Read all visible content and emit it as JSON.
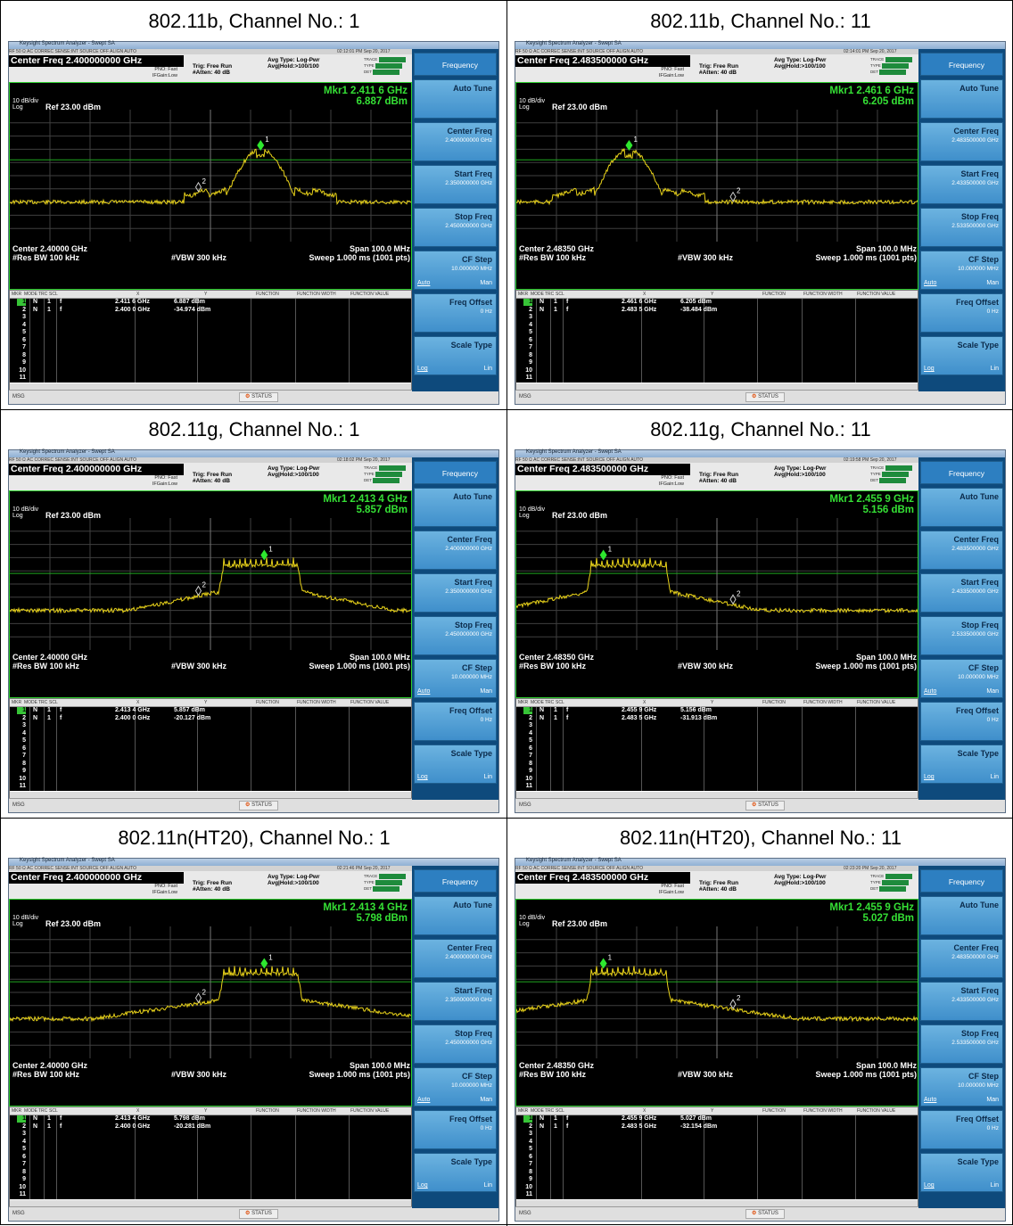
{
  "app_window_title": "Keysight Spectrum Analyzer - Swept SA",
  "status_line": "RF   50 Ω  AC   CORREC        SENSE:INT  SOURCE OFF     ALIGN AUTO",
  "common": {
    "pno": "PNO: Fast",
    "ifgain": "IFGain:Low",
    "trig": "Trig: Free Run",
    "atten": "#Atten: 40 dB",
    "avg_type": "Avg Type: Log-Pwr",
    "avg_hold": "Avg|Hold:>100/100",
    "trace_label": "TRACE",
    "type_label": "TYPE",
    "det_label": "DET",
    "scale": "10 dB/div",
    "log": "Log",
    "ref": "Ref 23.00 dBm",
    "res_bw": "#Res BW 100 kHz",
    "vbw": "#VBW 300 kHz",
    "span": "Span 100.0 MHz",
    "sweep": "Sweep  1.000 ms (1001 pts)",
    "table_headers": [
      "MKR",
      "MODE",
      "TRC",
      "SCL",
      "X",
      "Y",
      "FUNCTION",
      "FUNCTION WIDTH",
      "FUNCTION VALUE"
    ],
    "row_numbers": [
      "1",
      "2",
      "3",
      "4",
      "5",
      "6",
      "7",
      "8",
      "9",
      "10",
      "11"
    ],
    "row_mode": "N",
    "row_trc": "1",
    "row_scl": "f",
    "msg": "MSG",
    "status_btn": "STATUS",
    "softkeys": {
      "frequency": "Frequency",
      "auto_tune": "Auto Tune",
      "center_freq": "Center Freq",
      "start_freq": "Start Freq",
      "stop_freq": "Stop Freq",
      "start_val_ch1": "2.350000000 GHz",
      "stop_val_ch1": "2.450000000 GHz",
      "start_val_ch11": "2.433500000 GHz",
      "stop_val_ch11": "2.533500000 GHz",
      "center_val_ch1": "2.400000000 GHz",
      "center_val_ch11": "2.483500000 GHz",
      "cf_step": "CF Step",
      "cf_step_val": "10.000000 MHz",
      "auto": "Auto",
      "man": "Man",
      "freq_offset": "Freq Offset",
      "freq_offset_val": "0 Hz",
      "scale_type": "Scale Type",
      "log_opt": "Log",
      "lin_opt": "Lin"
    },
    "colors": {
      "trace": "#e8d21a",
      "graticule": "#3f3f3f",
      "limit_line": "#1fa81f",
      "marker": "#2ee82e",
      "softkey": "#3f8fcb"
    },
    "icons": [
      "window-controls-icon",
      "marker-diamond-icon",
      "status-icon"
    ]
  },
  "cells": [
    {
      "title": "802.11b, Channel No.: 1",
      "timestamp": "02:12:01 PM Sep 20, 2017",
      "center_freq": "Center Freq 2.400000000 GHz",
      "center_footer": "Center 2.40000 GHz",
      "mkr1_freq": "Mkr1 2.411 6 GHz",
      "mkr1_amp": "6.887 dBm",
      "m1_x": "2.411 6 GHz",
      "m1_y": "6.887 dBm",
      "m2_x": "2.400 0 GHz",
      "m2_y": "-34.974 dBm",
      "ch": 1,
      "kind": "b",
      "mkr1_pos": 0.625,
      "mkr2_pos": 0.5
    },
    {
      "title": "802.11b, Channel No.: 11",
      "timestamp": "02:14:01 PM Sep 20, 2017",
      "center_freq": "Center Freq 2.483500000 GHz",
      "center_footer": "Center 2.48350 GHz",
      "mkr1_freq": "Mkr1 2.461 6 GHz",
      "mkr1_amp": "6.205 dBm",
      "m1_x": "2.461 6 GHz",
      "m1_y": "6.205 dBm",
      "m2_x": "2.483 5 GHz",
      "m2_y": "-38.484 dBm",
      "ch": 11,
      "kind": "b",
      "mkr1_pos": 0.281,
      "mkr2_pos": 0.5
    },
    {
      "title": "802.11g, Channel No.: 1",
      "timestamp": "02:18:02 PM Sep 20, 2017",
      "center_freq": "Center Freq 2.400000000 GHz",
      "center_footer": "Center 2.40000 GHz",
      "mkr1_freq": "Mkr1 2.413 4 GHz",
      "mkr1_amp": "5.857 dBm",
      "m1_x": "2.413 4 GHz",
      "m1_y": "5.857 dBm",
      "m2_x": "2.400 0 GHz",
      "m2_y": "-20.127 dBm",
      "ch": 1,
      "kind": "g",
      "mkr1_pos": 0.634,
      "mkr2_pos": 0.5
    },
    {
      "title": "802.11g, Channel No.: 11",
      "timestamp": "02:19:58 PM Sep 20, 2017",
      "center_freq": "Center Freq 2.483500000 GHz",
      "center_footer": "Center 2.48350 GHz",
      "mkr1_freq": "Mkr1 2.455 9 GHz",
      "mkr1_amp": "5.156 dBm",
      "m1_x": "2.455 9 GHz",
      "m1_y": "5.156 dBm",
      "m2_x": "2.483 5 GHz",
      "m2_y": "-31.913 dBm",
      "ch": 11,
      "kind": "g",
      "mkr1_pos": 0.217,
      "mkr2_pos": 0.5
    },
    {
      "title": "802.11n(HT20), Channel No.: 1",
      "timestamp": "02:21:46 PM Sep 20, 2017",
      "center_freq": "Center Freq 2.400000000 GHz",
      "center_footer": "Center 2.40000 GHz",
      "mkr1_freq": "Mkr1 2.413 4 GHz",
      "mkr1_amp": "5.798 dBm",
      "m1_x": "2.413 4 GHz",
      "m1_y": "5.798 dBm",
      "m2_x": "2.400 0 GHz",
      "m2_y": "-20.281 dBm",
      "ch": 1,
      "kind": "n",
      "mkr1_pos": 0.634,
      "mkr2_pos": 0.5
    },
    {
      "title": "802.11n(HT20), Channel No.: 11",
      "timestamp": "02:23:20 PM Sep 20, 2017",
      "center_freq": "Center Freq 2.483500000 GHz",
      "center_footer": "Center 2.48350 GHz",
      "mkr1_freq": "Mkr1 2.455 9 GHz",
      "mkr1_amp": "5.027 dBm",
      "m1_x": "2.455 9 GHz",
      "m1_y": "5.027 dBm",
      "m2_x": "2.483 5 GHz",
      "m2_y": "-32.154 dBm",
      "ch": 11,
      "kind": "n",
      "mkr1_pos": 0.217,
      "mkr2_pos": 0.5
    }
  ]
}
